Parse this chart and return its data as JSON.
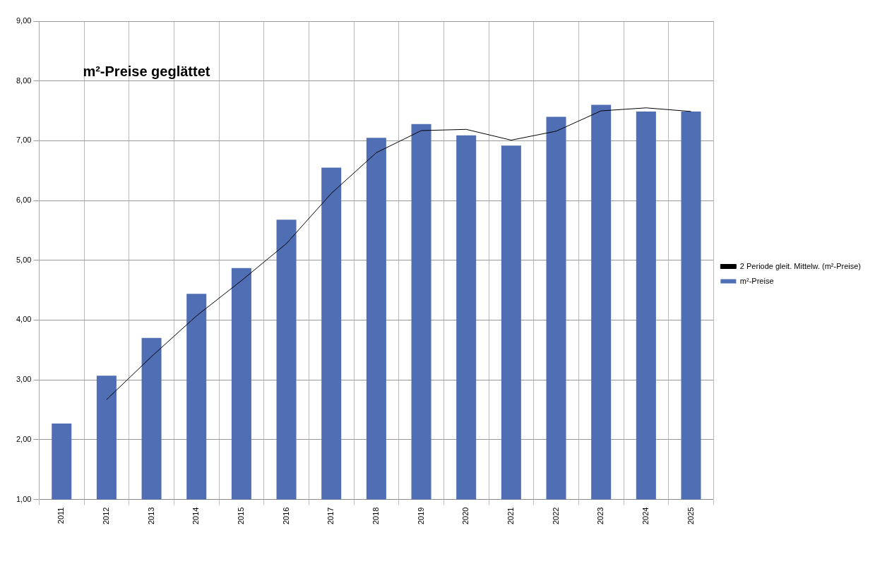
{
  "chart_data": {
    "type": "bar",
    "title": "m²-Preise geglättet",
    "categories": [
      "2011",
      "2012",
      "2013",
      "2014",
      "2015",
      "2016",
      "2017",
      "2018",
      "2019",
      "2020",
      "2021",
      "2022",
      "2023",
      "2024",
      "2025"
    ],
    "series": [
      {
        "name": "m²-Preise",
        "color": "#4f6eb4",
        "values": [
          2.27,
          3.07,
          3.7,
          4.44,
          4.87,
          5.68,
          6.55,
          7.05,
          7.28,
          7.09,
          6.92,
          7.4,
          7.6,
          7.49,
          7.49
        ]
      },
      {
        "name": "2 Periode gleit. Mittelw. (m²-Preise)",
        "type": "line",
        "color": "#000000",
        "values": [
          null,
          2.67,
          3.39,
          4.07,
          4.66,
          5.28,
          6.12,
          6.8,
          7.17,
          7.19,
          7.01,
          7.16,
          7.5,
          7.55,
          7.49
        ]
      }
    ],
    "ylim": [
      1,
      9
    ],
    "yticks": [
      {
        "value": 1,
        "label": "1,00"
      },
      {
        "value": 2,
        "label": "2,00"
      },
      {
        "value": 3,
        "label": "3,00"
      },
      {
        "value": 4,
        "label": "4,00"
      },
      {
        "value": 5,
        "label": "5,00"
      },
      {
        "value": 6,
        "label": "6,00"
      },
      {
        "value": 7,
        "label": "7,00"
      },
      {
        "value": 8,
        "label": "8,00"
      },
      {
        "value": 9,
        "label": "9,00"
      }
    ],
    "grid": true,
    "legend": "right",
    "marker": "none"
  }
}
